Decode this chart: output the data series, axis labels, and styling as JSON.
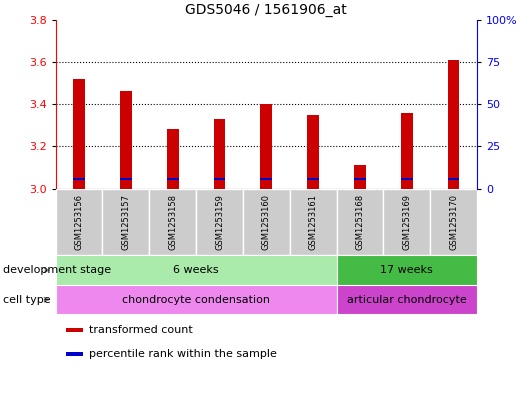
{
  "title": "GDS5046 / 1561906_at",
  "samples": [
    "GSM1253156",
    "GSM1253157",
    "GSM1253158",
    "GSM1253159",
    "GSM1253160",
    "GSM1253161",
    "GSM1253168",
    "GSM1253169",
    "GSM1253170"
  ],
  "transformed_count": [
    3.52,
    3.46,
    3.28,
    3.33,
    3.4,
    3.35,
    3.11,
    3.36,
    3.61
  ],
  "percentile_rank_y": [
    3.04,
    3.04,
    3.04,
    3.04,
    3.04,
    3.04,
    3.04,
    3.04,
    3.04
  ],
  "ylim_left": [
    3.0,
    3.8
  ],
  "ylim_right": [
    0,
    100
  ],
  "yticks_left": [
    3.0,
    3.2,
    3.4,
    3.6,
    3.8
  ],
  "yticks_right": [
    0,
    25,
    50,
    75,
    100
  ],
  "ytick_labels_right": [
    "0",
    "25",
    "50",
    "75",
    "100%"
  ],
  "bar_color": "#cc0000",
  "percentile_color": "#0000cc",
  "bar_bottom": 3.0,
  "bar_width": 0.25,
  "groups": [
    {
      "label": "6 weeks",
      "start": 0,
      "end": 6,
      "color": "#aaeaaa"
    },
    {
      "label": "17 weeks",
      "start": 6,
      "end": 9,
      "color": "#44bb44"
    }
  ],
  "cell_types": [
    {
      "label": "chondrocyte condensation",
      "start": 0,
      "end": 6,
      "color": "#ee88ee"
    },
    {
      "label": "articular chondrocyte",
      "start": 6,
      "end": 9,
      "color": "#cc44cc"
    }
  ],
  "dev_stage_label": "development stage",
  "cell_type_label": "cell type",
  "legend_items": [
    {
      "label": "transformed count",
      "color": "#cc0000"
    },
    {
      "label": "percentile rank within the sample",
      "color": "#0000cc"
    }
  ],
  "background_color": "#ffffff",
  "title_fontsize": 10,
  "tick_fontsize": 8,
  "label_fontsize": 8,
  "sample_fontsize": 6,
  "group_fontsize": 8
}
